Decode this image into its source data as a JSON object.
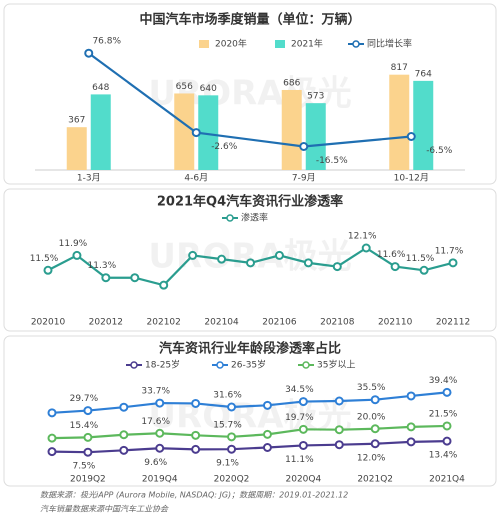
{
  "watermark": "URORA极光",
  "chart_data": [
    {
      "type": "bar",
      "title": "中国汽车市场季度销量（单位：万辆）",
      "categories": [
        "1-3月",
        "4-6月",
        "7-9月",
        "10-12月"
      ],
      "series": [
        {
          "name": "2020年",
          "color": "#fbd38d",
          "values": [
            367,
            656,
            686,
            817
          ]
        },
        {
          "name": "2021年",
          "color": "#52dccb",
          "values": [
            648,
            640,
            573,
            764
          ]
        },
        {
          "name": "同比增长率",
          "type": "line",
          "axis": "y2",
          "color": "#1f6fb2",
          "values": [
            76.8,
            -2.6,
            -16.5,
            -6.5
          ],
          "value_labels": [
            "76.8%",
            "-2.6%",
            "-16.5%",
            "-6.5%"
          ]
        }
      ],
      "ylim": [
        0,
        1200
      ],
      "y2lim": [
        -40,
        100
      ]
    },
    {
      "type": "line",
      "title": "2021年Q4汽车资讯行业渗透率",
      "categories": [
        "202010",
        null,
        "202012",
        null,
        "202102",
        null,
        "202104",
        null,
        "202106",
        null,
        "202108",
        null,
        "202110",
        null,
        "202112"
      ],
      "series": [
        {
          "name": "渗透率",
          "color": "#2a9d8f",
          "values": [
            11.5,
            11.9,
            11.3,
            11.3,
            11.1,
            11.9,
            11.8,
            11.7,
            11.9,
            11.7,
            11.6,
            12.1,
            11.6,
            11.5,
            11.7
          ],
          "value_labels": [
            "11.5%",
            "11.9%",
            "11.3%",
            null,
            null,
            null,
            null,
            null,
            null,
            null,
            null,
            "12.1%",
            "11.6%",
            "11.5%",
            "11.7%"
          ]
        }
      ],
      "ylim": [
        10.7,
        12.45
      ]
    },
    {
      "type": "line",
      "title": "汽车资讯行业年龄段渗透率占比",
      "categories": [
        null,
        "2019Q2",
        null,
        "2019Q4",
        null,
        "2020Q2",
        null,
        "2020Q4",
        null,
        "2021Q2",
        null,
        "2021Q4"
      ],
      "series": [
        {
          "name": "18-25岁",
          "color": "#4b3c8f",
          "values": [
            7.8,
            7.5,
            8.5,
            9.6,
            9.0,
            9.1,
            10.0,
            11.1,
            11.5,
            12.0,
            13.0,
            13.4
          ],
          "value_labels": [
            null,
            "7.5%",
            null,
            "9.6%",
            null,
            "9.1%",
            null,
            "11.1%",
            null,
            "12.0%",
            null,
            "13.4%"
          ]
        },
        {
          "name": "26-35岁",
          "color": "#2e7fd6",
          "values": [
            28.5,
            29.7,
            31.5,
            33.7,
            33.5,
            31.6,
            32.5,
            34.5,
            34.8,
            35.5,
            37.5,
            39.4
          ],
          "value_labels": [
            null,
            "29.7%",
            null,
            "33.7%",
            null,
            "31.6%",
            null,
            "34.5%",
            null,
            "35.5%",
            null,
            "39.4%"
          ]
        },
        {
          "name": "35岁以上",
          "color": "#5cb85c",
          "values": [
            15.0,
            15.4,
            16.8,
            17.6,
            16.5,
            15.7,
            17.0,
            19.7,
            19.5,
            20.0,
            21.0,
            21.5
          ],
          "value_labels": [
            null,
            "15.4%",
            null,
            "17.6%",
            null,
            "15.7%",
            null,
            "19.7%",
            null,
            "20.0%",
            null,
            "21.5%"
          ]
        }
      ],
      "ylim": [
        -2,
        46
      ]
    }
  ],
  "footer": {
    "source": "数据来源：极光iAPP (Aurora Mobile, NASDAQ: JG)；数据周期：2019.01-2021.12",
    "note": "汽车销量数据来源中国汽车工业协会"
  }
}
